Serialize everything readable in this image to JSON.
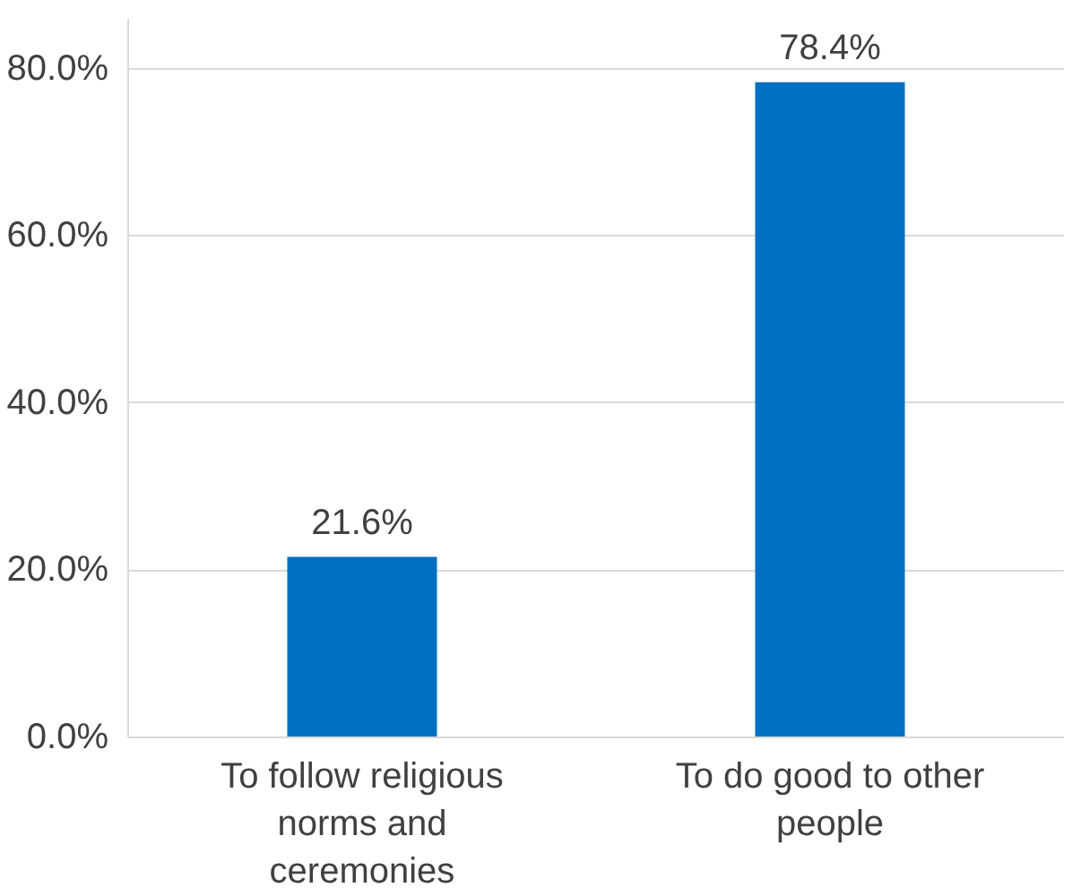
{
  "chart_data": {
    "type": "bar",
    "categories": [
      "To follow religious norms and ceremonies",
      "To do good to other people"
    ],
    "values": [
      21.6,
      78.4
    ],
    "value_labels": [
      "21.6%",
      "78.4%"
    ],
    "color": "#0070c0",
    "ylim": [
      0,
      86
    ],
    "yticks": [
      {
        "value": 0,
        "label": "0.0%"
      },
      {
        "value": 20,
        "label": "20.0%"
      },
      {
        "value": 40,
        "label": "40.0%"
      },
      {
        "value": 60,
        "label": "60.0%"
      },
      {
        "value": 80,
        "label": "80.0%"
      }
    ],
    "grid": "y"
  }
}
